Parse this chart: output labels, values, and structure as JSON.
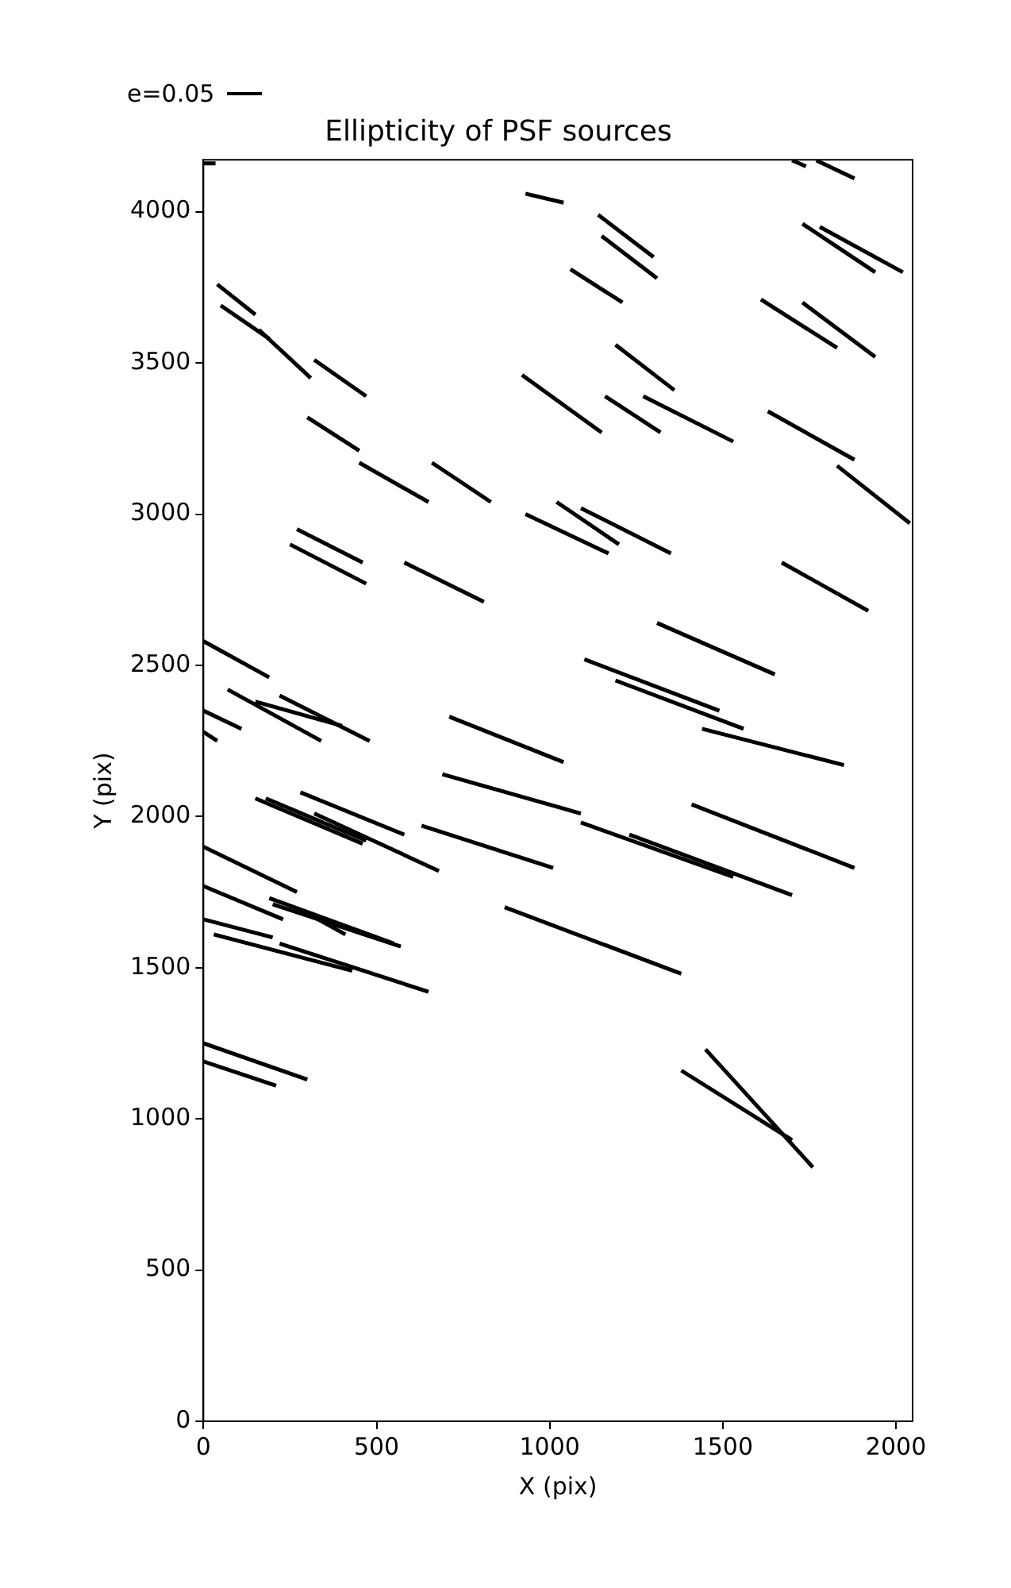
{
  "chart_data": {
    "type": "line",
    "title": "Ellipticity of PSF sources",
    "xlabel": "X (pix)",
    "ylabel": "Y (pix)",
    "annotations": [
      "e=0.05"
    ],
    "grid": false,
    "legend": false,
    "marker": "none",
    "line_style": "solid",
    "xlim": [
      0,
      2048
    ],
    "ylim": [
      0,
      4172
    ],
    "xticks": [
      0,
      500,
      1000,
      1500,
      2000
    ],
    "yticks": [
      0,
      500,
      1000,
      1500,
      2000,
      2500,
      3000,
      3500,
      4000
    ],
    "series": [
      {
        "color": "#000000",
        "x": [
          0,
          35
        ],
        "values": [
          4160,
          4160
        ]
      },
      {
        "color": "#000000",
        "x": [
          930,
          1040
        ],
        "values": [
          4060,
          4030
        ]
      },
      {
        "color": "#000000",
        "x": [
          1140,
          1300
        ],
        "values": [
          3990,
          3850
        ]
      },
      {
        "color": "#000000",
        "x": [
          1150,
          1310
        ],
        "values": [
          3920,
          3780
        ]
      },
      {
        "color": "#000000",
        "x": [
          1060,
          1210
        ],
        "values": [
          3810,
          3700
        ]
      },
      {
        "color": "#000000",
        "x": [
          1700,
          1740
        ],
        "values": [
          4170,
          4150
        ]
      },
      {
        "color": "#000000",
        "x": [
          1770,
          1880
        ],
        "values": [
          4170,
          4110
        ]
      },
      {
        "color": "#000000",
        "x": [
          1730,
          1940
        ],
        "values": [
          3960,
          3800
        ]
      },
      {
        "color": "#000000",
        "x": [
          1780,
          2020
        ],
        "values": [
          3950,
          3800
        ]
      },
      {
        "color": "#000000",
        "x": [
          1610,
          1830
        ],
        "values": [
          3710,
          3550
        ]
      },
      {
        "color": "#000000",
        "x": [
          1730,
          1940
        ],
        "values": [
          3700,
          3520
        ]
      },
      {
        "color": "#000000",
        "x": [
          40,
          150
        ],
        "values": [
          3760,
          3660
        ]
      },
      {
        "color": "#000000",
        "x": [
          50,
          190
        ],
        "values": [
          3690,
          3580
        ]
      },
      {
        "color": "#000000",
        "x": [
          160,
          310
        ],
        "values": [
          3610,
          3450
        ]
      },
      {
        "color": "#000000",
        "x": [
          320,
          470
        ],
        "values": [
          3510,
          3390
        ]
      },
      {
        "color": "#000000",
        "x": [
          1190,
          1360
        ],
        "values": [
          3560,
          3410
        ]
      },
      {
        "color": "#000000",
        "x": [
          920,
          1150
        ],
        "values": [
          3460,
          3270
        ]
      },
      {
        "color": "#000000",
        "x": [
          1160,
          1320
        ],
        "values": [
          3390,
          3270
        ]
      },
      {
        "color": "#000000",
        "x": [
          1270,
          1530
        ],
        "values": [
          3390,
          3240
        ]
      },
      {
        "color": "#000000",
        "x": [
          1630,
          1880
        ],
        "values": [
          3340,
          3180
        ]
      },
      {
        "color": "#000000",
        "x": [
          1830,
          2040
        ],
        "values": [
          3160,
          2970
        ]
      },
      {
        "color": "#000000",
        "x": [
          300,
          450
        ],
        "values": [
          3320,
          3210
        ]
      },
      {
        "color": "#000000",
        "x": [
          450,
          650
        ],
        "values": [
          3170,
          3040
        ]
      },
      {
        "color": "#000000",
        "x": [
          660,
          830
        ],
        "values": [
          3170,
          3040
        ]
      },
      {
        "color": "#000000",
        "x": [
          270,
          460
        ],
        "values": [
          2950,
          2840
        ]
      },
      {
        "color": "#000000",
        "x": [
          250,
          470
        ],
        "values": [
          2900,
          2770
        ]
      },
      {
        "color": "#000000",
        "x": [
          580,
          810
        ],
        "values": [
          2840,
          2710
        ]
      },
      {
        "color": "#000000",
        "x": [
          930,
          1170
        ],
        "values": [
          3000,
          2870
        ]
      },
      {
        "color": "#000000",
        "x": [
          1020,
          1200
        ],
        "values": [
          3040,
          2900
        ]
      },
      {
        "color": "#000000",
        "x": [
          1090,
          1350
        ],
        "values": [
          3020,
          2870
        ]
      },
      {
        "color": "#000000",
        "x": [
          1670,
          1920
        ],
        "values": [
          2840,
          2680
        ]
      },
      {
        "color": "#000000",
        "x": [
          1310,
          1650
        ],
        "values": [
          2640,
          2470
        ]
      },
      {
        "color": "#000000",
        "x": [
          0,
          190
        ],
        "values": [
          2580,
          2460
        ]
      },
      {
        "color": "#000000",
        "x": [
          1100,
          1490
        ],
        "values": [
          2520,
          2350
        ]
      },
      {
        "color": "#000000",
        "x": [
          1190,
          1560
        ],
        "values": [
          2450,
          2290
        ]
      },
      {
        "color": "#000000",
        "x": [
          1440,
          1850
        ],
        "values": [
          2290,
          2170
        ]
      },
      {
        "color": "#000000",
        "x": [
          0,
          110
        ],
        "values": [
          2350,
          2290
        ]
      },
      {
        "color": "#000000",
        "x": [
          0,
          40
        ],
        "values": [
          2280,
          2250
        ]
      },
      {
        "color": "#000000",
        "x": [
          70,
          340
        ],
        "values": [
          2420,
          2250
        ]
      },
      {
        "color": "#000000",
        "x": [
          150,
          400
        ],
        "values": [
          2380,
          2300
        ]
      },
      {
        "color": "#000000",
        "x": [
          220,
          480
        ],
        "values": [
          2400,
          2250
        ]
      },
      {
        "color": "#000000",
        "x": [
          710,
          1040
        ],
        "values": [
          2330,
          2180
        ]
      },
      {
        "color": "#000000",
        "x": [
          690,
          1090
        ],
        "values": [
          2140,
          2010
        ]
      },
      {
        "color": "#000000",
        "x": [
          630,
          1010
        ],
        "values": [
          1970,
          1830
        ]
      },
      {
        "color": "#000000",
        "x": [
          1090,
          1530
        ],
        "values": [
          1980,
          1800
        ]
      },
      {
        "color": "#000000",
        "x": [
          1230,
          1700
        ],
        "values": [
          1940,
          1740
        ]
      },
      {
        "color": "#000000",
        "x": [
          1410,
          1880
        ],
        "values": [
          2040,
          1830
        ]
      },
      {
        "color": "#000000",
        "x": [
          180,
          470
        ],
        "values": [
          2060,
          1920
        ]
      },
      {
        "color": "#000000",
        "x": [
          150,
          460
        ],
        "values": [
          2060,
          1910
        ]
      },
      {
        "color": "#000000",
        "x": [
          280,
          580
        ],
        "values": [
          2080,
          1940
        ]
      },
      {
        "color": "#000000",
        "x": [
          320,
          680
        ],
        "values": [
          2010,
          1820
        ]
      },
      {
        "color": "#000000",
        "x": [
          0,
          270
        ],
        "values": [
          1900,
          1750
        ]
      },
      {
        "color": "#000000",
        "x": [
          0,
          230
        ],
        "values": [
          1770,
          1660
        ]
      },
      {
        "color": "#000000",
        "x": [
          190,
          550
        ],
        "values": [
          1730,
          1580
        ]
      },
      {
        "color": "#000000",
        "x": [
          200,
          570
        ],
        "values": [
          1710,
          1570
        ]
      },
      {
        "color": "#000000",
        "x": [
          300,
          410
        ],
        "values": [
          1680,
          1610
        ]
      },
      {
        "color": "#000000",
        "x": [
          0,
          200
        ],
        "values": [
          1660,
          1600
        ]
      },
      {
        "color": "#000000",
        "x": [
          30,
          430
        ],
        "values": [
          1610,
          1490
        ]
      },
      {
        "color": "#000000",
        "x": [
          220,
          650
        ],
        "values": [
          1580,
          1420
        ]
      },
      {
        "color": "#000000",
        "x": [
          870,
          1380
        ],
        "values": [
          1700,
          1480
        ]
      },
      {
        "color": "#000000",
        "x": [
          0,
          300
        ],
        "values": [
          1250,
          1130
        ]
      },
      {
        "color": "#000000",
        "x": [
          0,
          210
        ],
        "values": [
          1190,
          1110
        ]
      },
      {
        "color": "#000000",
        "x": [
          1380,
          1700
        ],
        "values": [
          1160,
          930
        ]
      },
      {
        "color": "#000000",
        "x": [
          1450,
          1760
        ],
        "values": [
          1230,
          840
        ]
      }
    ]
  }
}
